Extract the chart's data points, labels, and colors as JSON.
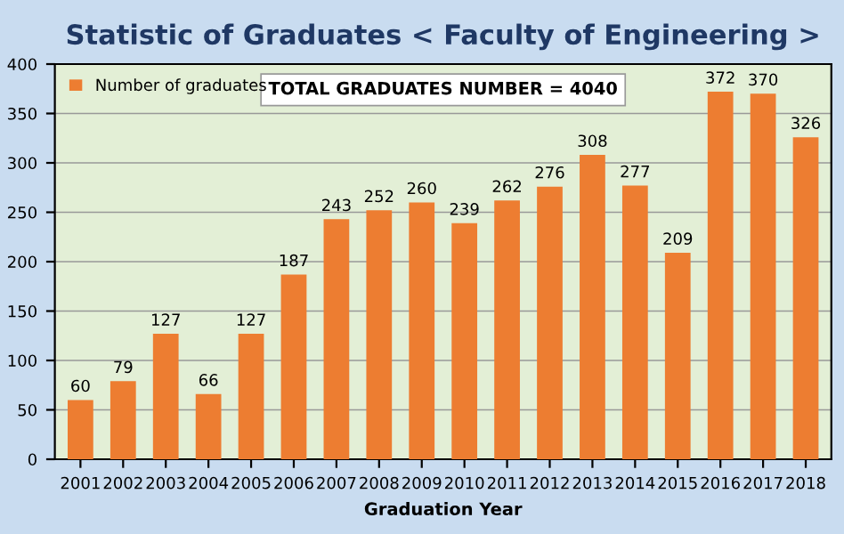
{
  "chart_data": {
    "type": "bar",
    "title": "Statistic of Graduates < Faculty of Engineering >",
    "xlabel": "Graduation Year",
    "categories": [
      "2001",
      "2002",
      "2003",
      "2004",
      "2005",
      "2006",
      "2007",
      "2008",
      "2009",
      "2010",
      "2011",
      "2012",
      "2013",
      "2014",
      "2015",
      "2016",
      "2017",
      "2018"
    ],
    "series": [
      {
        "name": "Number of graduates",
        "color": "#ed7d31",
        "values": [
          60,
          79,
          127,
          66,
          127,
          187,
          243,
          252,
          260,
          239,
          262,
          276,
          308,
          277,
          209,
          372,
          370,
          326
        ]
      }
    ],
    "ylim": [
      0,
      400
    ],
    "yticks": [
      0,
      50,
      100,
      150,
      200,
      250,
      300,
      350,
      400
    ],
    "grid": "y",
    "legend": "top left",
    "data_labels": true,
    "annotations": [
      "TOTAL GRADUATES NUMBER = 4040"
    ]
  }
}
